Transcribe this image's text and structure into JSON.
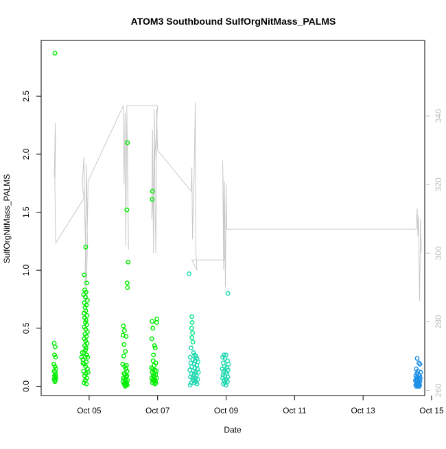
{
  "chart_data": {
    "type": "scatter",
    "title": "ATOM3 Southbound SulfOrgNitMass_PALMS",
    "xlabel": "Date",
    "ylabel": "SulfOrgNitMass_PALMS",
    "x_unit": "days since Oct 04 00:00",
    "xlim": [
      3.6,
      14.8
    ],
    "ylim": [
      -0.08,
      2.98
    ],
    "y2lim": [
      258.5,
      362.0
    ],
    "x_ticks": [
      {
        "x": 5,
        "label": "Oct 05"
      },
      {
        "x": 7,
        "label": "Oct 07"
      },
      {
        "x": 9,
        "label": "Oct 09"
      },
      {
        "x": 11,
        "label": "Oct 11"
      },
      {
        "x": 13,
        "label": "Oct 13"
      },
      {
        "x": 15,
        "label": "Oct 15"
      }
    ],
    "y_ticks": [
      0.0,
      0.5,
      1.0,
      1.5,
      2.0,
      2.5
    ],
    "y_tick_labels": [
      "0.0",
      "0.5",
      "1.0",
      "1.5",
      "2.0",
      "2.5"
    ],
    "y2_ticks": [
      260,
      280,
      300,
      320,
      340
    ],
    "y2_tick_labels": [
      "260",
      "280",
      "300",
      "320",
      "340"
    ],
    "grid": false,
    "colors": {
      "green": "#00ee00",
      "aqua_green": "#00e88a",
      "teal": "#1fd8b0",
      "blue": "#1e90e6",
      "secondary_line": "#c8c8c8",
      "right_axis": "#bdbdbd"
    },
    "series": [
      {
        "color": "#00ee00",
        "points": [
          [
            4.0,
            2.87
          ],
          [
            3.98,
            0.37
          ],
          [
            4.01,
            0.34
          ],
          [
            3.99,
            0.27
          ],
          [
            4.02,
            0.25
          ],
          [
            3.97,
            0.19
          ],
          [
            4.0,
            0.17
          ],
          [
            4.03,
            0.15
          ],
          [
            3.98,
            0.13
          ],
          [
            4.01,
            0.12
          ],
          [
            4.02,
            0.1
          ],
          [
            3.99,
            0.09
          ],
          [
            4.0,
            0.08
          ],
          [
            4.03,
            0.07
          ],
          [
            3.98,
            0.06
          ],
          [
            4.01,
            0.05
          ],
          [
            4.0,
            0.04
          ],
          [
            4.9,
            1.2
          ],
          [
            4.86,
            0.96
          ],
          [
            4.93,
            0.89
          ],
          [
            4.87,
            0.83
          ],
          [
            4.91,
            0.81
          ],
          [
            4.84,
            0.79
          ],
          [
            4.89,
            0.77
          ],
          [
            4.95,
            0.74
          ],
          [
            4.86,
            0.72
          ],
          [
            4.92,
            0.7
          ],
          [
            4.88,
            0.68
          ],
          [
            4.9,
            0.65
          ],
          [
            4.85,
            0.63
          ],
          [
            4.94,
            0.61
          ],
          [
            4.87,
            0.59
          ],
          [
            4.91,
            0.57
          ],
          [
            4.89,
            0.55
          ],
          [
            4.93,
            0.53
          ],
          [
            4.86,
            0.51
          ],
          [
            4.9,
            0.49
          ],
          [
            4.95,
            0.47
          ],
          [
            4.88,
            0.45
          ],
          [
            4.92,
            0.43
          ],
          [
            4.86,
            0.41
          ],
          [
            4.9,
            0.39
          ],
          [
            4.94,
            0.37
          ],
          [
            4.87,
            0.35
          ],
          [
            4.91,
            0.33
          ],
          [
            4.89,
            0.31
          ],
          [
            4.85,
            0.29
          ],
          [
            4.93,
            0.27
          ],
          [
            4.88,
            0.25
          ],
          [
            4.82,
            0.23
          ],
          [
            4.92,
            0.21
          ],
          [
            4.86,
            0.19
          ],
          [
            4.9,
            0.17
          ],
          [
            4.95,
            0.15
          ],
          [
            4.84,
            0.13
          ],
          [
            4.91,
            0.11
          ],
          [
            4.87,
            0.09
          ],
          [
            4.93,
            0.07
          ],
          [
            4.89,
            0.05
          ],
          [
            4.85,
            0.03
          ],
          [
            4.92,
            0.02
          ],
          [
            4.8,
            0.29
          ],
          [
            4.78,
            0.25
          ],
          [
            4.82,
            0.2
          ],
          [
            4.96,
            0.25
          ],
          [
            4.97,
            0.12
          ],
          [
            6.12,
            2.1
          ],
          [
            6.1,
            1.52
          ],
          [
            6.14,
            1.07
          ],
          [
            6.11,
            0.89
          ],
          [
            6.12,
            0.85
          ],
          [
            6.0,
            0.52
          ],
          [
            6.03,
            0.48
          ],
          [
            5.99,
            0.44
          ],
          [
            6.08,
            0.43
          ],
          [
            6.02,
            0.36
          ],
          [
            6.06,
            0.3
          ],
          [
            6.01,
            0.26
          ],
          [
            5.98,
            0.19
          ],
          [
            6.04,
            0.17
          ],
          [
            6.09,
            0.18
          ],
          [
            6.07,
            0.15
          ],
          [
            6.11,
            0.13
          ],
          [
            6.02,
            0.11
          ],
          [
            6.05,
            0.1
          ],
          [
            6.1,
            0.09
          ],
          [
            6.08,
            0.08
          ],
          [
            6.0,
            0.07
          ],
          [
            6.03,
            0.06
          ],
          [
            6.06,
            0.05
          ],
          [
            6.12,
            0.05
          ],
          [
            5.99,
            0.04
          ],
          [
            6.04,
            0.03
          ],
          [
            6.09,
            0.03
          ],
          [
            6.02,
            0.02
          ],
          [
            6.07,
            0.01
          ],
          [
            6.11,
            0.01
          ],
          [
            6.05,
            0.0
          ],
          [
            6.85,
            1.68
          ],
          [
            6.84,
            1.61
          ],
          [
            6.98,
            0.58
          ],
          [
            6.84,
            0.56
          ],
          [
            6.97,
            0.55
          ],
          [
            6.86,
            0.5
          ],
          [
            6.83,
            0.41
          ],
          [
            6.91,
            0.35
          ],
          [
            6.93,
            0.33
          ],
          [
            6.88,
            0.27
          ],
          [
            6.87,
            0.22
          ],
          [
            6.95,
            0.2
          ],
          [
            6.9,
            0.18
          ],
          [
            6.82,
            0.16
          ],
          [
            6.86,
            0.15
          ],
          [
            6.92,
            0.14
          ],
          [
            6.96,
            0.13
          ],
          [
            6.84,
            0.12
          ],
          [
            6.89,
            0.11
          ],
          [
            6.94,
            0.1
          ],
          [
            6.87,
            0.09
          ],
          [
            6.91,
            0.08
          ],
          [
            6.83,
            0.07
          ],
          [
            6.97,
            0.07
          ],
          [
            6.88,
            0.06
          ],
          [
            6.93,
            0.05
          ],
          [
            6.86,
            0.05
          ],
          [
            6.9,
            0.04
          ],
          [
            6.95,
            0.03
          ],
          [
            6.85,
            0.03
          ],
          [
            6.92,
            0.02
          ]
        ]
      },
      {
        "color": "#00e88a",
        "points": [
          [
            8.0,
            0.6
          ],
          [
            8.01,
            0.55
          ],
          [
            7.99,
            0.5
          ],
          [
            8.02,
            0.46
          ],
          [
            8.0,
            0.42
          ],
          [
            8.03,
            0.38
          ]
        ]
      },
      {
        "color": "#1fd8b0",
        "points": [
          [
            7.92,
            0.97
          ],
          [
            7.98,
            0.33
          ],
          [
            8.05,
            0.29
          ],
          [
            8.08,
            0.27
          ],
          [
            8.12,
            0.26
          ],
          [
            7.95,
            0.25
          ],
          [
            8.15,
            0.24
          ],
          [
            8.03,
            0.23
          ],
          [
            8.1,
            0.22
          ],
          [
            8.18,
            0.21
          ],
          [
            7.97,
            0.2
          ],
          [
            8.06,
            0.19
          ],
          [
            8.14,
            0.18
          ],
          [
            8.0,
            0.17
          ],
          [
            8.09,
            0.16
          ],
          [
            8.16,
            0.15
          ],
          [
            7.94,
            0.14
          ],
          [
            8.04,
            0.13
          ],
          [
            8.11,
            0.12
          ],
          [
            8.19,
            0.12
          ],
          [
            7.99,
            0.11
          ],
          [
            8.07,
            0.1
          ],
          [
            8.13,
            0.09
          ],
          [
            7.96,
            0.08
          ],
          [
            8.02,
            0.07
          ],
          [
            8.1,
            0.07
          ],
          [
            8.17,
            0.06
          ],
          [
            8.05,
            0.05
          ],
          [
            8.12,
            0.04
          ],
          [
            7.98,
            0.03
          ],
          [
            8.08,
            0.03
          ],
          [
            8.15,
            0.02
          ],
          [
            7.95,
            0.01
          ],
          [
            9.05,
            0.8
          ],
          [
            8.94,
            0.27
          ],
          [
            9.0,
            0.27
          ],
          [
            8.9,
            0.25
          ],
          [
            8.97,
            0.24
          ],
          [
            9.04,
            0.22
          ],
          [
            8.92,
            0.2
          ],
          [
            9.07,
            0.19
          ],
          [
            8.95,
            0.17
          ],
          [
            9.02,
            0.16
          ],
          [
            8.89,
            0.15
          ],
          [
            9.06,
            0.14
          ],
          [
            8.93,
            0.13
          ],
          [
            8.99,
            0.12
          ],
          [
            9.03,
            0.11
          ],
          [
            8.91,
            0.1
          ],
          [
            8.96,
            0.09
          ],
          [
            9.05,
            0.08
          ],
          [
            8.9,
            0.07
          ],
          [
            9.01,
            0.06
          ],
          [
            8.94,
            0.05
          ],
          [
            9.04,
            0.04
          ],
          [
            8.97,
            0.03
          ],
          [
            8.92,
            0.02
          ],
          [
            9.0,
            0.01
          ]
        ]
      },
      {
        "color": "#1e90e6",
        "points": [
          [
            14.58,
            0.24
          ],
          [
            14.63,
            0.2
          ],
          [
            14.66,
            0.19
          ],
          [
            14.55,
            0.15
          ],
          [
            14.6,
            0.13
          ],
          [
            14.68,
            0.12
          ],
          [
            14.57,
            0.11
          ],
          [
            14.62,
            0.1
          ],
          [
            14.65,
            0.09
          ],
          [
            14.54,
            0.09
          ],
          [
            14.59,
            0.08
          ],
          [
            14.67,
            0.07
          ],
          [
            14.56,
            0.07
          ],
          [
            14.61,
            0.06
          ],
          [
            14.64,
            0.06
          ],
          [
            14.53,
            0.05
          ],
          [
            14.58,
            0.05
          ],
          [
            14.66,
            0.04
          ],
          [
            14.55,
            0.04
          ],
          [
            14.6,
            0.03
          ],
          [
            14.63,
            0.03
          ],
          [
            14.57,
            0.02
          ],
          [
            14.62,
            0.02
          ],
          [
            14.65,
            0.01
          ],
          [
            14.54,
            0.01
          ],
          [
            14.59,
            0.01
          ],
          [
            14.61,
            0.0
          ],
          [
            14.56,
            0.0
          ],
          [
            14.64,
            0.0
          ]
        ]
      }
    ],
    "secondary_line": {
      "axis": "right",
      "color": "#c8c8c8",
      "points": [
        [
          3.98,
          322
        ],
        [
          4.0,
          331
        ],
        [
          4.01,
          338
        ],
        [
          4.02,
          333
        ],
        [
          4.0,
          320
        ],
        [
          4.02,
          305
        ],
        [
          4.03,
          303
        ],
        [
          4.85,
          316
        ],
        [
          4.8,
          320
        ],
        [
          4.85,
          328
        ],
        [
          4.87,
          312
        ],
        [
          4.9,
          300
        ],
        [
          4.88,
          290
        ],
        [
          4.92,
          326
        ],
        [
          4.95,
          303
        ],
        [
          4.9,
          281
        ],
        [
          4.97,
          321
        ],
        [
          6.0,
          343
        ],
        [
          6.02,
          320
        ],
        [
          6.05,
          341
        ],
        [
          6.07,
          302
        ],
        [
          6.1,
          340
        ],
        [
          6.12,
          330
        ],
        [
          6.15,
          301
        ],
        [
          6.1,
          343
        ],
        [
          7.0,
          343
        ],
        [
          6.83,
          310
        ],
        [
          6.85,
          336
        ],
        [
          6.88,
          300
        ],
        [
          6.9,
          342
        ],
        [
          6.93,
          311
        ],
        [
          6.95,
          300
        ],
        [
          6.97,
          342
        ],
        [
          7.0,
          330
        ],
        [
          7.98,
          318
        ],
        [
          8.0,
          325
        ],
        [
          8.02,
          304
        ],
        [
          8.04,
          313
        ],
        [
          8.05,
          313
        ],
        [
          8.1,
          344
        ],
        [
          8.12,
          300
        ],
        [
          8.15,
          295
        ],
        [
          8.0,
          298
        ],
        [
          8.95,
          298
        ],
        [
          8.9,
          327
        ],
        [
          8.93,
          295
        ],
        [
          8.95,
          321
        ],
        [
          8.98,
          290
        ],
        [
          9.0,
          320
        ],
        [
          9.02,
          307
        ],
        [
          14.55,
          307
        ],
        [
          14.58,
          313
        ],
        [
          14.6,
          305
        ],
        [
          14.62,
          311
        ],
        [
          14.65,
          286
        ],
        [
          14.68,
          310
        ],
        [
          14.7,
          300
        ]
      ]
    }
  }
}
